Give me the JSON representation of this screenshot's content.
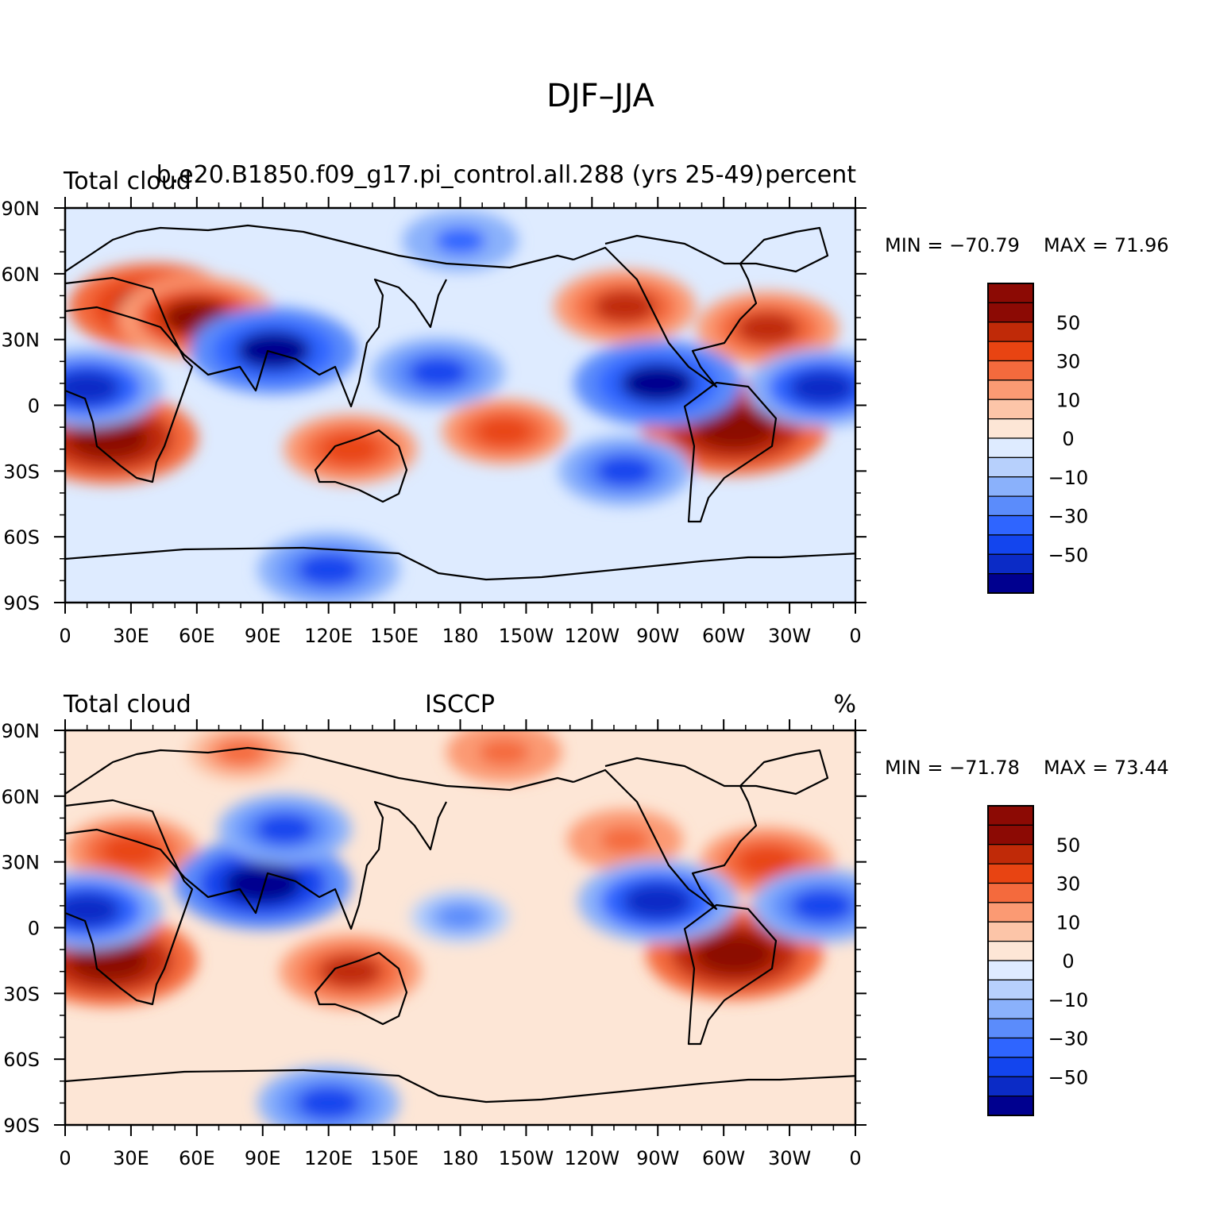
{
  "figure": {
    "title": "DJF–JJA"
  },
  "colors": {
    "palette": [
      "#00008f",
      "#0b2bc6",
      "#1345ee",
      "#2f65ff",
      "#5b8cfb",
      "#8ab1fb",
      "#b7d0fc",
      "#deebff",
      "#fde6d6",
      "#fcc5a8",
      "#fb9a73",
      "#f46a3d",
      "#e84412",
      "#c02a08",
      "#8c0a04"
    ],
    "land": "#000000",
    "frame": "#000000"
  },
  "chart_data": [
    {
      "type": "heatmap",
      "title_left": "Total cloud",
      "title_center": "b.e20.B1850.f09_g17.pi_control.all.288 (yrs 25-49)",
      "title_right": "percent",
      "min_label": "MIN = −70.79",
      "max_label": "MAX =   71.96",
      "lon_ticks": [
        "0",
        "30E",
        "60E",
        "90E",
        "120E",
        "150E",
        "180",
        "150W",
        "120W",
        "90W",
        "60W",
        "30W",
        "0"
      ],
      "lat_ticks": [
        "90N",
        "60N",
        "30N",
        "0",
        "30S",
        "60S",
        "90S"
      ],
      "xlim": [
        0,
        360
      ],
      "ylim": [
        -90,
        90
      ],
      "colorbar": {
        "levels": [
          -60,
          -50,
          -40,
          -30,
          -20,
          -10,
          -5,
          0,
          5,
          10,
          20,
          30,
          40,
          50,
          60
        ],
        "labels": [
          "50",
          "30",
          "10",
          "0",
          "−10",
          "−30",
          "−50"
        ]
      },
      "features": [
        {
          "lon": 40,
          "lat": 45,
          "value": 60
        },
        {
          "lon": 60,
          "lat": 40,
          "value": 55
        },
        {
          "lon": 20,
          "lat": -15,
          "value": 65
        },
        {
          "lon": 305,
          "lat": -10,
          "value": 70
        },
        {
          "lon": 320,
          "lat": 35,
          "value": 45
        },
        {
          "lon": 255,
          "lat": 45,
          "value": 45
        },
        {
          "lon": 130,
          "lat": -20,
          "value": 40
        },
        {
          "lon": 200,
          "lat": -12,
          "value": 35
        },
        {
          "lon": 270,
          "lat": 10,
          "value": -60
        },
        {
          "lon": 95,
          "lat": 25,
          "value": -60
        },
        {
          "lon": 10,
          "lat": 8,
          "value": -50
        },
        {
          "lon": 345,
          "lat": 8,
          "value": -50
        },
        {
          "lon": 170,
          "lat": 15,
          "value": -40
        },
        {
          "lon": 255,
          "lat": -30,
          "value": -40
        },
        {
          "lon": 120,
          "lat": -75,
          "value": -45
        },
        {
          "lon": 180,
          "lat": 75,
          "value": -30
        }
      ]
    },
    {
      "type": "heatmap",
      "title_left": "Total cloud",
      "title_center": "ISCCP",
      "title_right": "%",
      "min_label": "MIN = −71.78",
      "max_label": "MAX =   73.44",
      "lon_ticks": [
        "0",
        "30E",
        "60E",
        "90E",
        "120E",
        "150E",
        "180",
        "150W",
        "120W",
        "90W",
        "60W",
        "30W",
        "0"
      ],
      "lat_ticks": [
        "90N",
        "60N",
        "30N",
        "0",
        "30S",
        "60S",
        "90S"
      ],
      "xlim": [
        0,
        360
      ],
      "ylim": [
        -90,
        90
      ],
      "colorbar": {
        "levels": [
          -60,
          -50,
          -40,
          -30,
          -20,
          -10,
          -5,
          0,
          5,
          10,
          20,
          30,
          40,
          50,
          60
        ],
        "labels": [
          "50",
          "30",
          "10",
          "0",
          "−10",
          "−30",
          "−50"
        ]
      },
      "features": [
        {
          "lon": 20,
          "lat": -15,
          "value": 65
        },
        {
          "lon": 305,
          "lat": -12,
          "value": 65
        },
        {
          "lon": 130,
          "lat": -20,
          "value": 45
        },
        {
          "lon": 30,
          "lat": 35,
          "value": 40
        },
        {
          "lon": 320,
          "lat": 30,
          "value": 40
        },
        {
          "lon": 255,
          "lat": 40,
          "value": 30
        },
        {
          "lon": 200,
          "lat": 80,
          "value": 30
        },
        {
          "lon": 80,
          "lat": 80,
          "value": 25
        },
        {
          "lon": 90,
          "lat": 20,
          "value": -65
        },
        {
          "lon": 100,
          "lat": 45,
          "value": -40
        },
        {
          "lon": 10,
          "lat": 8,
          "value": -50
        },
        {
          "lon": 270,
          "lat": 12,
          "value": -55
        },
        {
          "lon": 345,
          "lat": 10,
          "value": -45
        },
        {
          "lon": 180,
          "lat": 5,
          "value": -20
        },
        {
          "lon": 120,
          "lat": -80,
          "value": -45
        }
      ]
    }
  ]
}
